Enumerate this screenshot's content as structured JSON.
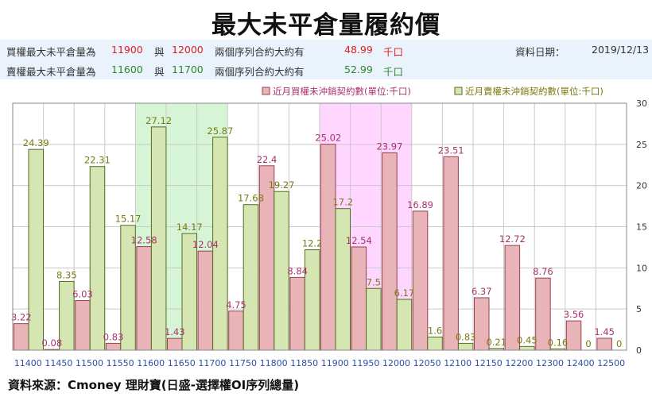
{
  "title": "最大未平倉量履約價",
  "info": {
    "call_row": {
      "label": "買權最大未平倉量為",
      "strike1": "11900",
      "sep": "與",
      "strike2": "12000",
      "desc": "兩個序列合約大約有",
      "amount": "48.99",
      "unit": "千口"
    },
    "put_row": {
      "label": "賣權最大未平倉量為",
      "strike1": "11600",
      "sep": "與",
      "strike2": "11700",
      "desc": "兩個序列合約大約有",
      "amount": "52.99",
      "unit": "千口"
    },
    "date_label": "資料日期：",
    "date_value": "2019/12/13"
  },
  "source": "資料來源：Cmoney 理財寶(日盛-選擇權OI序列總量)",
  "colors": {
    "call": "#e8b4b8",
    "call_stroke": "#9a4050",
    "put": "#d6e6b2",
    "put_stroke": "#556b22",
    "call_label": "#a8326a",
    "put_label": "#7a7a10",
    "highlight_put": "#d6f5d6",
    "highlight_call": "#ffd6ff",
    "tick": "#2a4fa8"
  },
  "chart_data": {
    "type": "bar",
    "categories": [
      "11400",
      "11450",
      "11500",
      "11550",
      "11600",
      "11650",
      "11700",
      "11750",
      "11800",
      "11850",
      "11900",
      "11950",
      "12000",
      "12050",
      "12100",
      "12150",
      "12200",
      "12300",
      "12400",
      "12500"
    ],
    "series": [
      {
        "name": "近月買權未沖銷契約數(單位:千口)",
        "values": [
          3.22,
          0.08,
          6.03,
          0.83,
          12.58,
          1.43,
          12.04,
          4.75,
          22.4,
          8.84,
          25.02,
          12.54,
          23.97,
          16.89,
          23.51,
          6.37,
          12.72,
          8.76,
          3.56,
          1.45
        ]
      },
      {
        "name": "近月賣權未沖銷契約數(單位:千口)",
        "values": [
          24.39,
          8.35,
          22.31,
          15.17,
          27.12,
          14.17,
          25.87,
          17.68,
          19.27,
          12.2,
          17.2,
          7.5,
          6.17,
          1.6,
          0.83,
          0.21,
          0.45,
          0.16,
          0,
          0
        ]
      }
    ],
    "highlights": [
      {
        "from": "11600",
        "to": "11700",
        "series": "put"
      },
      {
        "from": "11900",
        "to": "12000",
        "series": "call"
      }
    ],
    "yticks": [
      0,
      5,
      10,
      15,
      20,
      25,
      30
    ],
    "ylim": [
      0,
      30
    ],
    "legend": "top-right",
    "grid": true
  }
}
